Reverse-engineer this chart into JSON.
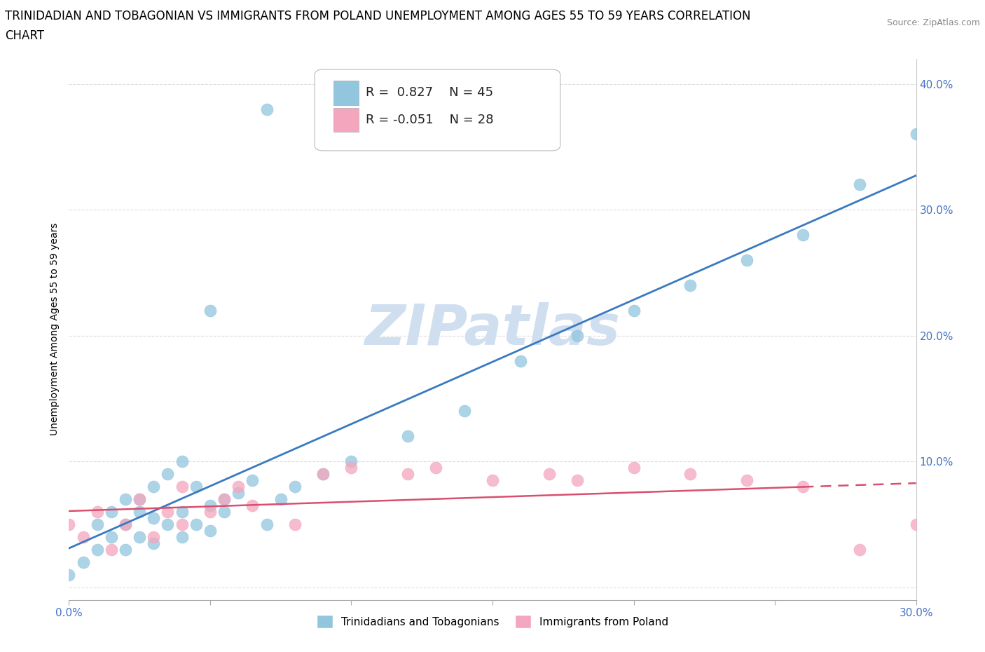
{
  "title_line1": "TRINIDADIAN AND TOBAGONIAN VS IMMIGRANTS FROM POLAND UNEMPLOYMENT AMONG AGES 55 TO 59 YEARS CORRELATION",
  "title_line2": "CHART",
  "source_text": "Source: ZipAtlas.com",
  "ylabel": "Unemployment Among Ages 55 to 59 years",
  "xlim": [
    0.0,
    0.3
  ],
  "ylim": [
    -0.01,
    0.42
  ],
  "xticks": [
    0.0,
    0.05,
    0.1,
    0.15,
    0.2,
    0.25,
    0.3
  ],
  "yticks": [
    0.0,
    0.1,
    0.2,
    0.3,
    0.4
  ],
  "blue_R": 0.827,
  "blue_N": 45,
  "pink_R": -0.051,
  "pink_N": 28,
  "blue_color": "#92c5de",
  "pink_color": "#f4a6be",
  "blue_line_color": "#3a7abf",
  "pink_line_color": "#d94f6e",
  "watermark_text": "ZIPatlas",
  "watermark_color": "#d0dff0",
  "legend_label_blue": "Trinidadians and Tobagonians",
  "legend_label_pink": "Immigrants from Poland",
  "blue_scatter_x": [
    0.0,
    0.005,
    0.01,
    0.01,
    0.015,
    0.015,
    0.02,
    0.02,
    0.02,
    0.025,
    0.025,
    0.025,
    0.03,
    0.03,
    0.03,
    0.035,
    0.035,
    0.04,
    0.04,
    0.04,
    0.045,
    0.045,
    0.05,
    0.05,
    0.055,
    0.055,
    0.06,
    0.065,
    0.07,
    0.075,
    0.08,
    0.09,
    0.1,
    0.12,
    0.14,
    0.16,
    0.18,
    0.2,
    0.22,
    0.24,
    0.26,
    0.28,
    0.3,
    0.05,
    0.07
  ],
  "blue_scatter_y": [
    0.01,
    0.02,
    0.03,
    0.05,
    0.04,
    0.06,
    0.03,
    0.05,
    0.07,
    0.04,
    0.06,
    0.07,
    0.035,
    0.055,
    0.08,
    0.05,
    0.09,
    0.04,
    0.06,
    0.1,
    0.05,
    0.08,
    0.045,
    0.065,
    0.06,
    0.07,
    0.075,
    0.085,
    0.05,
    0.07,
    0.08,
    0.09,
    0.1,
    0.12,
    0.14,
    0.18,
    0.2,
    0.22,
    0.24,
    0.26,
    0.28,
    0.32,
    0.36,
    0.22,
    0.38
  ],
  "pink_scatter_x": [
    0.0,
    0.005,
    0.01,
    0.015,
    0.02,
    0.025,
    0.03,
    0.035,
    0.04,
    0.04,
    0.05,
    0.055,
    0.06,
    0.065,
    0.08,
    0.09,
    0.1,
    0.12,
    0.13,
    0.15,
    0.17,
    0.18,
    0.2,
    0.22,
    0.24,
    0.26,
    0.28,
    0.3
  ],
  "pink_scatter_y": [
    0.05,
    0.04,
    0.06,
    0.03,
    0.05,
    0.07,
    0.04,
    0.06,
    0.05,
    0.08,
    0.06,
    0.07,
    0.08,
    0.065,
    0.05,
    0.09,
    0.095,
    0.09,
    0.095,
    0.085,
    0.09,
    0.085,
    0.095,
    0.09,
    0.085,
    0.08,
    0.03,
    0.05
  ],
  "background_color": "#ffffff",
  "grid_color": "#dddddd",
  "title_fontsize": 12,
  "axis_label_fontsize": 10,
  "tick_fontsize": 11,
  "legend_fontsize": 13,
  "tick_color": "#4472c4"
}
